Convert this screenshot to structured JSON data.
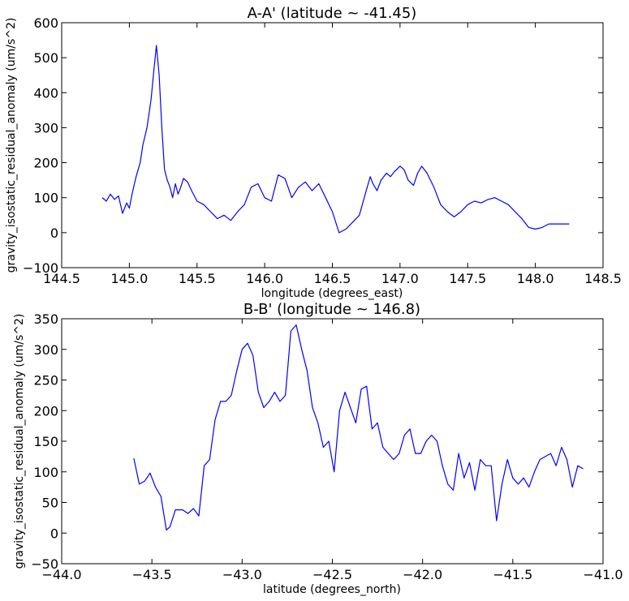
{
  "chart_data": [
    {
      "type": "line",
      "title": "A-A' (latitude ~ -41.45)",
      "xlabel": "longitude (degrees_east)",
      "ylabel": "gravity_isostatic_residual_anomaly (um/s^2)",
      "xlim": [
        144.5,
        148.5
      ],
      "ylim": [
        -100,
        600
      ],
      "xticks": [
        144.5,
        145.0,
        145.5,
        146.0,
        146.5,
        147.0,
        147.5,
        148.0,
        148.5
      ],
      "xtick_labels": [
        "144.5",
        "145.0",
        "145.5",
        "146.0",
        "146.5",
        "147.0",
        "147.5",
        "148.0",
        "148.5"
      ],
      "yticks": [
        -100,
        0,
        100,
        200,
        300,
        400,
        500,
        600
      ],
      "ytick_labels": [
        "−100",
        "0",
        "100",
        "200",
        "300",
        "400",
        "500",
        "600"
      ],
      "line_color": "#0000ff",
      "grid": false,
      "series": [
        {
          "x": [
            144.8,
            144.83,
            144.86,
            144.89,
            144.92,
            144.95,
            144.98,
            145.0,
            145.02,
            145.05,
            145.08,
            145.1,
            145.13,
            145.16,
            145.18,
            145.2,
            145.22,
            145.24,
            145.26,
            145.28,
            145.3,
            145.32,
            145.34,
            145.36,
            145.38,
            145.4,
            145.43,
            145.46,
            145.5,
            145.55,
            145.6,
            145.65,
            145.7,
            145.75,
            145.8,
            145.85,
            145.9,
            145.95,
            146.0,
            146.05,
            146.1,
            146.15,
            146.2,
            146.25,
            146.3,
            146.35,
            146.4,
            146.45,
            146.5,
            146.55,
            146.6,
            146.65,
            146.7,
            146.75,
            146.78,
            146.8,
            146.83,
            146.86,
            146.9,
            146.93,
            146.96,
            147.0,
            147.03,
            147.06,
            147.1,
            147.13,
            147.16,
            147.2,
            147.25,
            147.3,
            147.35,
            147.4,
            147.45,
            147.5,
            147.55,
            147.6,
            147.65,
            147.7,
            147.75,
            147.8,
            147.85,
            147.9,
            147.95,
            148.0,
            148.05,
            148.1,
            148.15,
            148.2,
            148.25
          ],
          "y": [
            100,
            90,
            110,
            95,
            105,
            55,
            85,
            70,
            110,
            160,
            200,
            250,
            300,
            380,
            460,
            535,
            450,
            300,
            180,
            150,
            130,
            100,
            140,
            110,
            130,
            155,
            145,
            120,
            90,
            80,
            60,
            40,
            50,
            35,
            60,
            80,
            130,
            140,
            100,
            90,
            165,
            155,
            100,
            130,
            145,
            120,
            140,
            100,
            60,
            0,
            10,
            30,
            50,
            120,
            160,
            140,
            120,
            150,
            170,
            160,
            175,
            190,
            180,
            150,
            135,
            170,
            190,
            170,
            130,
            80,
            60,
            45,
            60,
            80,
            90,
            85,
            95,
            100,
            90,
            80,
            60,
            40,
            15,
            10,
            15,
            25,
            25,
            25,
            25
          ]
        }
      ]
    },
    {
      "type": "line",
      "title": "B-B' (longitude ~ 146.8)",
      "xlabel": "latitude (degrees_north)",
      "ylabel": "gravity_isostatic_residual_anomaly (um/s^2)",
      "xlim": [
        -44.0,
        -41.0
      ],
      "ylim": [
        -50,
        350
      ],
      "xticks": [
        -44.0,
        -43.5,
        -43.0,
        -42.5,
        -42.0,
        -41.5,
        -41.0
      ],
      "xtick_labels": [
        "−44.0",
        "−43.5",
        "−43.0",
        "−42.5",
        "−42.0",
        "−41.5",
        "−41.0"
      ],
      "yticks": [
        -50,
        0,
        50,
        100,
        150,
        200,
        250,
        300,
        350
      ],
      "ytick_labels": [
        "−50",
        "0",
        "50",
        "100",
        "150",
        "200",
        "250",
        "300",
        "350"
      ],
      "line_color": "#0000ff",
      "grid": false,
      "series": [
        {
          "x": [
            -43.6,
            -43.57,
            -43.54,
            -43.51,
            -43.48,
            -43.45,
            -43.42,
            -43.4,
            -43.37,
            -43.33,
            -43.3,
            -43.27,
            -43.24,
            -43.21,
            -43.18,
            -43.15,
            -43.12,
            -43.09,
            -43.06,
            -43.03,
            -43.0,
            -42.97,
            -42.94,
            -42.91,
            -42.88,
            -42.85,
            -42.82,
            -42.79,
            -42.76,
            -42.73,
            -42.7,
            -42.67,
            -42.64,
            -42.61,
            -42.58,
            -42.55,
            -42.52,
            -42.49,
            -42.46,
            -42.43,
            -42.4,
            -42.37,
            -42.34,
            -42.31,
            -42.28,
            -42.25,
            -42.22,
            -42.19,
            -42.16,
            -42.13,
            -42.1,
            -42.07,
            -42.04,
            -42.01,
            -41.98,
            -41.95,
            -41.92,
            -41.89,
            -41.86,
            -41.83,
            -41.8,
            -41.77,
            -41.74,
            -41.71,
            -41.68,
            -41.65,
            -41.62,
            -41.59,
            -41.56,
            -41.53,
            -41.5,
            -41.47,
            -41.44,
            -41.41,
            -41.38,
            -41.35,
            -41.32,
            -41.29,
            -41.26,
            -41.23,
            -41.2,
            -41.17,
            -41.14,
            -41.11
          ],
          "y": [
            122,
            80,
            85,
            98,
            75,
            60,
            5,
            10,
            38,
            38,
            32,
            40,
            28,
            110,
            120,
            185,
            215,
            215,
            225,
            265,
            300,
            310,
            290,
            230,
            205,
            215,
            230,
            215,
            225,
            330,
            340,
            300,
            265,
            205,
            180,
            140,
            150,
            100,
            200,
            230,
            205,
            180,
            235,
            240,
            170,
            180,
            140,
            130,
            120,
            130,
            160,
            170,
            130,
            130,
            150,
            160,
            150,
            110,
            80,
            70,
            130,
            90,
            115,
            70,
            120,
            110,
            110,
            20,
            80,
            120,
            90,
            80,
            90,
            75,
            100,
            120,
            125,
            130,
            110,
            140,
            120,
            75,
            110,
            105
          ]
        }
      ]
    }
  ]
}
